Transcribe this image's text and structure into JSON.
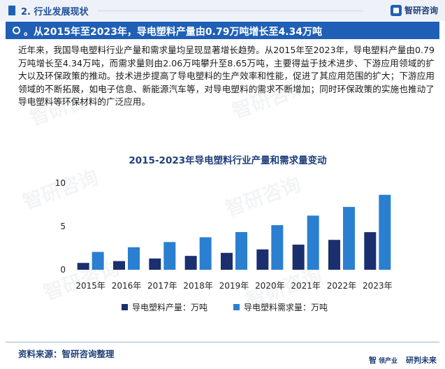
{
  "header": {
    "section_title": "2. 行业发展现状",
    "brand_name": "智研咨询"
  },
  "headline": "。从2015年至2023年，导电塑料产量由0.79万吨增长至4.34万吨",
  "paragraph": "近年来，我国导电塑料行业产量和需求量均呈现显著增长趋势。从2015年至2023年，导电塑料产量由0.79万吨增长至4.34万吨，而需求量则由2.06万吨攀升至8.65万吨，主要得益于技术进步、下游应用领域的扩大以及环保政策的推动。技术进步提高了导电塑料的生产效率和性能，促进了其应用范围的扩大；下游应用领域的不断拓展，如电子信息、新能源汽车等，对导电塑料的需求不断增加；同时环保政策的实施也推动了导电塑料等环保材料的广泛应用。",
  "chart_data": {
    "type": "bar",
    "title": "2015-2023年导电塑料行业产量和需求量变动",
    "categories": [
      "2015年",
      "2016年",
      "2017年",
      "2018年",
      "2019年",
      "2020年",
      "2021年",
      "2022年",
      "2023年"
    ],
    "series": [
      {
        "name": "导电塑料产量：万吨",
        "color": "#1a2f6e",
        "values": [
          0.79,
          1.0,
          1.3,
          1.6,
          1.95,
          2.35,
          2.9,
          3.45,
          4.34
        ]
      },
      {
        "name": "导电塑料需求量：万吨",
        "color": "#2a7fd0",
        "values": [
          2.06,
          2.6,
          3.2,
          3.75,
          4.35,
          5.15,
          6.25,
          7.25,
          8.65
        ]
      }
    ],
    "yticks": [
      0,
      5,
      10
    ],
    "ylim": [
      0,
      10
    ],
    "grid": false,
    "legend": "bottom"
  },
  "footer": {
    "source": "资料来源：智研咨询整理",
    "brand_left": "智",
    "slogan_a": "领产业",
    "slogan_b": "研判未来"
  },
  "watermark": "智研咨询"
}
